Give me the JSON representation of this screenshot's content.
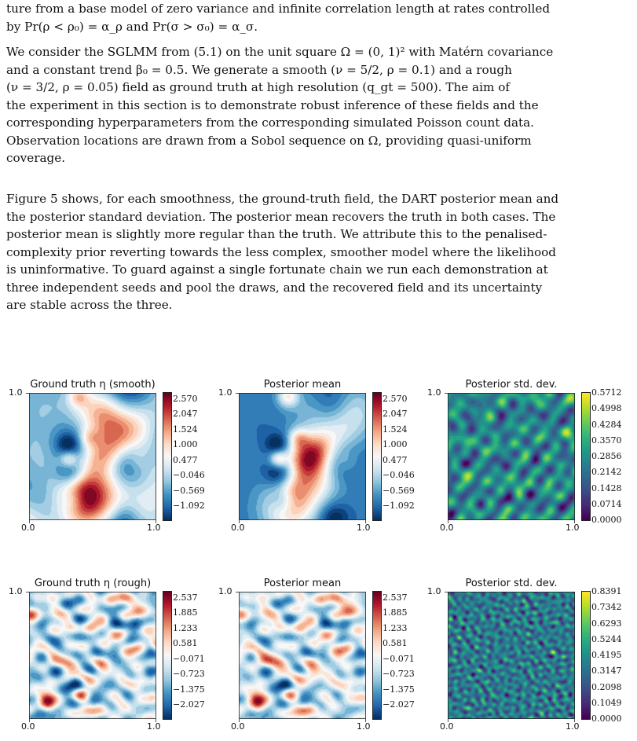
{
  "text": {
    "p1": [
      "ture from a base model of zero variance and infinite correlation length at rates controlled",
      "by Pr(ρ < ρ₀) = α_ρ and Pr(σ > σ₀) = α_σ."
    ],
    "p2": [
      "We consider the SGLMM from (5.1) on the unit square Ω = (0, 1)² with Matérn covariance",
      "and a constant trend β₀ = 0.5. We generate a smooth (ν = 5/2, ρ = 0.1) and a rough",
      "(ν = 3/2, ρ = 0.05) field as ground truth at high resolution (q_gt = 500). The aim of",
      "the experiment in this section is to demonstrate robust inference of these fields and the",
      "corresponding hyperparameters from the corresponding simulated Poisson count data.",
      "Observation locations are drawn from a Sobol sequence on Ω, providing quasi-uniform",
      "coverage."
    ],
    "p3": [
      "Figure 5 shows, for each smoothness, the ground-truth field, the DART posterior mean and",
      "the posterior standard deviation. The posterior mean recovers the truth in both cases. The",
      "posterior mean is slightly more regular than the truth. We attribute this to the penalised-",
      "complexity prior reverting towards the less complex, smoother model where the likelihood",
      "is uninformative. To guard against a single fortunate chain we run each demonstration at",
      "three independent seeds and pool the draws, and the recovered field and its uncertainty",
      "are stable across the three."
    ]
  },
  "figure": {
    "rows": [
      {
        "panels": [
          {
            "title": "Ground truth η (smooth)",
            "cmap": "RdBu_r",
            "colorbar": [
              "2.570",
              "2.047",
              "1.524",
              "1.000",
              "0.477",
              "−0.046",
              "−0.569",
              "−1.092"
            ]
          },
          {
            "title": "Posterior mean",
            "cmap": "RdBu_r",
            "colorbar": [
              "2.570",
              "2.047",
              "1.524",
              "1.000",
              "0.477",
              "−0.046",
              "−0.569",
              "−1.092"
            ]
          },
          {
            "title": "Posterior std. dev.",
            "cmap": "viridis",
            "colorbar": [
              "0.5712",
              "0.4998",
              "0.4284",
              "0.3570",
              "0.2856",
              "0.2142",
              "0.1428",
              "0.0714",
              "0.0000"
            ]
          }
        ]
      },
      {
        "panels": [
          {
            "title": "Ground truth η (rough)",
            "cmap": "RdBu_r",
            "colorbar": [
              "2.537",
              "1.885",
              "1.233",
              "0.581",
              "−0.071",
              "−0.723",
              "−1.375",
              "−2.027"
            ]
          },
          {
            "title": "Posterior mean",
            "cmap": "RdBu_r",
            "colorbar": [
              "2.537",
              "1.885",
              "1.233",
              "0.581",
              "−0.071",
              "−0.723",
              "−1.375",
              "−2.027"
            ]
          },
          {
            "title": "Posterior std. dev.",
            "cmap": "viridis",
            "colorbar": [
              "0.8391",
              "0.7342",
              "0.6293",
              "0.5244",
              "0.4195",
              "0.3147",
              "0.2098",
              "0.1049",
              "0.0000"
            ]
          }
        ]
      }
    ],
    "axis_ticks": {
      "x_min": "0.0",
      "x_max": "1.0",
      "y_max": "1.0"
    }
  }
}
